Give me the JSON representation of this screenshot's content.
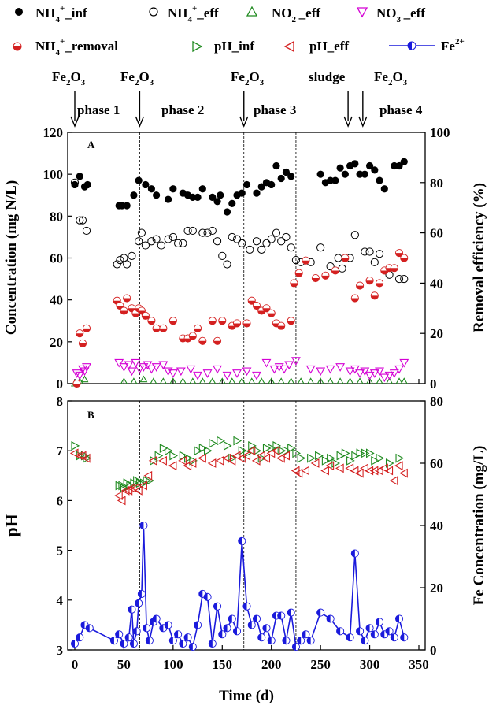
{
  "chart_data": [
    {
      "panel": "A",
      "type": "scatter",
      "xlabel": "Time (d)",
      "ylabel": "Concentration (mg N/L)",
      "y2label": "Removal efficiency (%)",
      "xlim": [
        0,
        350
      ],
      "ylim": [
        0,
        120
      ],
      "y2lim": [
        0,
        100
      ],
      "xticks": [
        "0",
        "50",
        "100",
        "150",
        "200",
        "250",
        "300",
        "350"
      ],
      "yticks": [
        "0",
        "20",
        "40",
        "60",
        "80",
        "100",
        "120"
      ],
      "y2ticks": [
        "0",
        "20",
        "40",
        "60",
        "80",
        "100"
      ],
      "legend": [
        {
          "key": "nh4_inf",
          "prefix": "NH",
          "sub": "4",
          "sup": "+",
          "suffix": "_inf"
        },
        {
          "key": "nh4_eff",
          "prefix": "NH",
          "sub": "4",
          "sup": "+",
          "suffix": "_eff"
        },
        {
          "key": "no2_eff",
          "prefix": "NO",
          "sub": "2",
          "sup": "-",
          "suffix": "_eff"
        },
        {
          "key": "no3_eff",
          "prefix": "NO",
          "sub": "3",
          "sup": "-",
          "suffix": "_eff"
        },
        {
          "key": "nh4_removal",
          "prefix": "NH",
          "sub": "4",
          "sup": "+",
          "suffix": "_removal"
        }
      ],
      "series": [
        {
          "name": "NH4+_inf",
          "axis": "left",
          "style": "filled-black-circle",
          "x": [
            0,
            5,
            10,
            13,
            45,
            48,
            53,
            60,
            65,
            72,
            78,
            83,
            95,
            100,
            110,
            115,
            120,
            125,
            130,
            140,
            145,
            148,
            155,
            160,
            165,
            170,
            175,
            185,
            190,
            195,
            200,
            205,
            210,
            215,
            220,
            250,
            255,
            260,
            265,
            270,
            275,
            280,
            285,
            290,
            295,
            300,
            305,
            310,
            315,
            325,
            330,
            335
          ],
          "y": [
            95,
            99,
            94,
            95,
            85,
            85,
            85,
            90,
            97,
            95,
            93,
            90,
            88,
            93,
            91,
            90,
            89,
            89,
            93,
            89,
            87,
            90,
            82,
            86,
            90,
            91,
            95,
            91,
            94,
            96,
            95,
            104,
            98,
            101,
            99,
            100,
            96,
            97,
            97,
            103,
            100,
            104,
            105,
            100,
            100,
            104,
            102,
            97,
            93,
            104,
            104,
            106
          ]
        },
        {
          "name": "NH4+_eff",
          "axis": "left",
          "style": "open-circle",
          "x": [
            0,
            5,
            8,
            12,
            43,
            46,
            50,
            53,
            58,
            65,
            68,
            72,
            78,
            83,
            88,
            95,
            100,
            105,
            110,
            115,
            120,
            130,
            135,
            140,
            145,
            150,
            155,
            160,
            165,
            170,
            178,
            185,
            190,
            195,
            200,
            205,
            210,
            215,
            220,
            225,
            230,
            240,
            250,
            260,
            268,
            272,
            280,
            285,
            295,
            300,
            305,
            310,
            320,
            330,
            335
          ],
          "y": [
            96,
            78,
            78,
            73,
            57,
            59,
            60,
            57,
            61,
            68,
            72,
            66,
            68,
            69,
            66,
            69,
            70,
            67,
            67,
            73,
            73,
            72,
            72,
            73,
            68,
            61,
            57,
            70,
            69,
            67,
            64,
            68,
            64,
            67,
            69,
            72,
            68,
            70,
            65,
            59,
            58,
            58,
            65,
            56,
            60,
            55,
            60,
            71,
            63,
            63,
            58,
            62,
            52,
            50,
            50
          ]
        },
        {
          "name": "NO2-_eff",
          "axis": "left",
          "style": "open-green-triangle-up",
          "x": [
            0,
            5,
            10,
            50,
            60,
            70,
            80,
            90,
            100,
            110,
            120,
            130,
            140,
            150,
            160,
            170,
            180,
            190,
            200,
            210,
            220,
            230,
            240,
            250,
            260,
            270,
            280,
            290,
            300,
            310,
            320,
            330,
            335
          ],
          "y": [
            0,
            1,
            2,
            1,
            1,
            2,
            1,
            1,
            1,
            1,
            1,
            1,
            1,
            1,
            1,
            1,
            1,
            1,
            1,
            1,
            1,
            1,
            1,
            1,
            1,
            1,
            1,
            1,
            1,
            1,
            1,
            1,
            1
          ]
        },
        {
          "name": "NO3-_eff",
          "axis": "left",
          "style": "open-magenta-triangle-down",
          "x": [
            2,
            5,
            8,
            10,
            12,
            45,
            50,
            55,
            58,
            62,
            66,
            70,
            74,
            78,
            83,
            90,
            95,
            100,
            108,
            118,
            125,
            135,
            145,
            155,
            165,
            175,
            185,
            195,
            203,
            208,
            213,
            218,
            225,
            240,
            250,
            260,
            270,
            280,
            285,
            290,
            295,
            300,
            305,
            310,
            315,
            320,
            325,
            330,
            335
          ],
          "y": [
            5,
            4,
            7,
            6,
            8,
            10,
            8,
            9,
            6,
            10,
            7,
            8,
            9,
            7,
            8,
            9,
            6,
            5,
            6,
            7,
            4,
            5,
            7,
            4,
            5,
            6,
            4,
            10,
            7,
            8,
            7,
            9,
            11,
            7,
            6,
            7,
            8,
            6,
            7,
            5,
            6,
            4,
            5,
            6,
            3,
            4,
            5,
            7,
            10
          ]
        },
        {
          "name": "NH4+_removal",
          "axis": "right",
          "style": "half-filled-red-circle",
          "x": [
            2,
            5,
            8,
            12,
            43,
            46,
            50,
            53,
            58,
            62,
            65,
            68,
            72,
            78,
            83,
            90,
            100,
            110,
            115,
            120,
            125,
            130,
            140,
            145,
            150,
            160,
            165,
            175,
            180,
            185,
            190,
            195,
            200,
            205,
            210,
            220,
            223,
            228,
            235,
            245,
            255,
            265,
            275,
            285,
            290,
            300,
            305,
            310,
            315,
            320,
            325,
            330,
            335
          ],
          "y": [
            0,
            20,
            16,
            22,
            33,
            31,
            29,
            34,
            30,
            28,
            30,
            29,
            27,
            25,
            22,
            22,
            25,
            18,
            18,
            19,
            22,
            17,
            25,
            17,
            25,
            23,
            24,
            24,
            33,
            31,
            29,
            30,
            28,
            24,
            23,
            25,
            40,
            44,
            49,
            42,
            43,
            45,
            50,
            34,
            39,
            41,
            35,
            40,
            45,
            46,
            46,
            52,
            50
          ]
        }
      ]
    },
    {
      "panel": "B",
      "type": "scatter",
      "xlabel": "Time (d)",
      "ylabel": "pH",
      "y2label": "Fe Concentration (mg/L)",
      "xlim": [
        0,
        350
      ],
      "ylim": [
        3,
        8
      ],
      "y2lim": [
        0,
        80
      ],
      "xticks": [
        "0",
        "50",
        "100",
        "150",
        "200",
        "250",
        "300",
        "350"
      ],
      "yticks": [
        "3",
        "4",
        "5",
        "6",
        "7",
        "8"
      ],
      "y2ticks": [
        "0",
        "20",
        "40",
        "60",
        "80"
      ],
      "legend": [
        {
          "key": "ph_inf",
          "label": "pH_inf"
        },
        {
          "key": "ph_eff",
          "label": "pH_eff"
        },
        {
          "key": "fe",
          "prefix": "Fe",
          "sup": "2+"
        }
      ],
      "series": [
        {
          "name": "pH_inf",
          "axis": "left",
          "style": "open-green-triangle-right",
          "x": [
            0,
            5,
            10,
            12,
            45,
            48,
            50,
            53,
            56,
            60,
            63,
            66,
            70,
            73,
            76,
            80,
            85,
            90,
            95,
            100,
            110,
            115,
            120,
            125,
            130,
            135,
            140,
            148,
            155,
            160,
            165,
            170,
            175,
            180,
            185,
            190,
            195,
            200,
            205,
            210,
            215,
            220,
            225,
            230,
            240,
            248,
            255,
            260,
            265,
            270,
            275,
            280,
            285,
            290,
            295,
            300,
            305,
            310,
            320,
            330
          ],
          "y": [
            7.1,
            6.9,
            6.9,
            6.85,
            6.3,
            6.3,
            6.25,
            6.35,
            6.3,
            6.35,
            6.4,
            6.35,
            6.35,
            6.4,
            6.4,
            6.8,
            6.9,
            7.05,
            7.0,
            6.9,
            6.9,
            6.85,
            6.8,
            7.0,
            7.05,
            7.0,
            7.15,
            7.2,
            7.1,
            6.85,
            7.2,
            7.0,
            6.95,
            7.1,
            7.0,
            6.85,
            7.05,
            7.05,
            7.1,
            7.0,
            7.0,
            7.05,
            6.95,
            6.85,
            6.85,
            6.9,
            6.8,
            6.85,
            6.75,
            6.9,
            6.95,
            6.8,
            6.9,
            6.95,
            6.95,
            6.95,
            6.8,
            6.85,
            6.75,
            6.85
          ]
        },
        {
          "name": "pH_eff",
          "axis": "left",
          "style": "open-red-triangle-left",
          "x": [
            0,
            5,
            8,
            12,
            45,
            48,
            52,
            55,
            58,
            62,
            65,
            70,
            75,
            80,
            90,
            100,
            110,
            115,
            120,
            130,
            140,
            148,
            155,
            160,
            165,
            170,
            175,
            180,
            185,
            190,
            195,
            200,
            205,
            210,
            215,
            225,
            228,
            235,
            245,
            255,
            260,
            270,
            280,
            285,
            290,
            295,
            300,
            305,
            310,
            315,
            320,
            325,
            330,
            335
          ],
          "y": [
            6.95,
            6.9,
            6.9,
            6.85,
            6.1,
            6.0,
            6.2,
            6.2,
            6.25,
            6.25,
            6.2,
            6.3,
            6.5,
            6.8,
            6.8,
            6.7,
            6.8,
            6.7,
            6.75,
            6.85,
            6.75,
            6.8,
            6.85,
            6.8,
            6.9,
            6.85,
            6.9,
            7.0,
            6.8,
            6.9,
            6.85,
            6.95,
            7.0,
            6.85,
            6.9,
            6.6,
            6.55,
            6.6,
            6.75,
            6.6,
            6.7,
            6.65,
            6.65,
            6.6,
            6.55,
            6.65,
            6.6,
            6.6,
            6.6,
            6.65,
            6.6,
            6.4,
            6.7,
            6.55
          ]
        },
        {
          "name": "Fe2+",
          "axis": "right",
          "style": "half-filled-blue-circle-line",
          "x": [
            0,
            5,
            10,
            15,
            40,
            45,
            50,
            55,
            58,
            60,
            63,
            65,
            68,
            70,
            73,
            76,
            80,
            83,
            90,
            95,
            100,
            105,
            110,
            115,
            120,
            125,
            130,
            135,
            140,
            145,
            150,
            155,
            160,
            165,
            170,
            175,
            180,
            185,
            190,
            195,
            200,
            205,
            210,
            215,
            220,
            225,
            230,
            235,
            240,
            250,
            260,
            270,
            280,
            285,
            290,
            295,
            300,
            305,
            310,
            315,
            320,
            325,
            330,
            335
          ],
          "y": [
            2,
            4,
            8,
            7,
            3,
            5,
            2,
            4,
            13,
            2,
            6,
            15,
            18,
            40,
            7,
            3,
            9,
            10,
            7,
            8,
            3,
            5,
            2,
            4,
            1,
            8,
            18,
            17,
            2,
            14,
            5,
            7,
            10,
            6,
            35,
            14,
            8,
            10,
            4,
            7,
            3,
            11,
            11,
            3,
            12,
            1,
            3,
            5,
            3,
            12,
            10,
            6,
            4,
            31,
            6,
            3,
            7,
            5,
            9,
            5,
            6,
            4,
            10,
            4
          ]
        }
      ]
    }
  ],
  "annotations": {
    "fe2o3_label_main": "Fe",
    "fe2o3_label_sub1": "2",
    "fe2o3_label_mid": "O",
    "fe2o3_label_sub2": "3",
    "sludge": "sludge",
    "phases": [
      "phase 1",
      "phase 2",
      "phase 3",
      "phase 4"
    ],
    "event_days": [
      0,
      66,
      172,
      278,
      293
    ],
    "phase_boundaries_days": [
      66,
      172,
      225
    ],
    "panel_a_label": "A",
    "panel_b_label": "B"
  }
}
